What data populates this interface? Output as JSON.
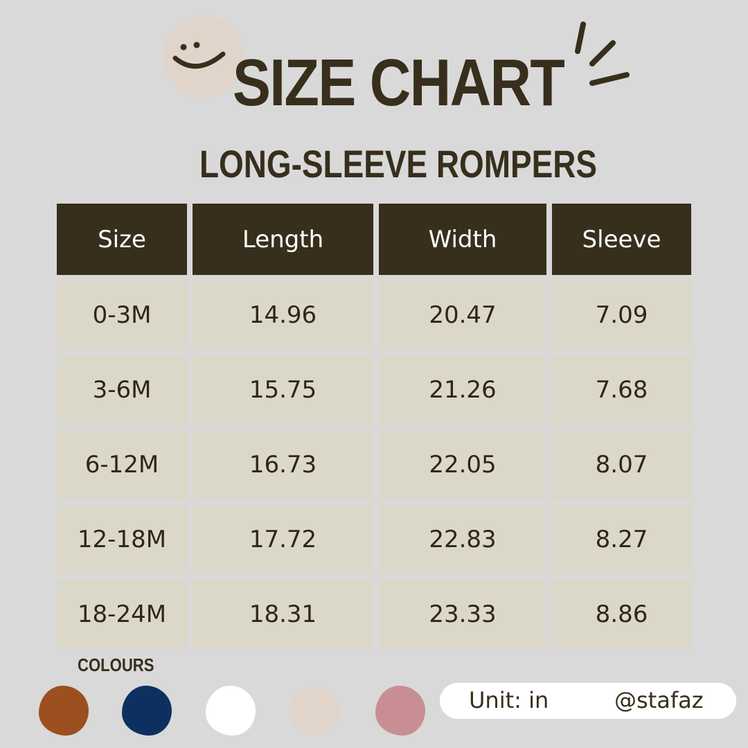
{
  "title": "SIZE CHART",
  "subtitle": "LONG-SLEEVE ROMPERS",
  "table": {
    "headers": [
      "Size",
      "Length",
      "Width",
      "Sleeve"
    ],
    "rows": [
      [
        "0-3M",
        "14.96",
        "20.47",
        "7.09"
      ],
      [
        "3-6M",
        "15.75",
        "21.26",
        "7.68"
      ],
      [
        "6-12M",
        "16.73",
        "22.05",
        "8.07"
      ],
      [
        "12-18M",
        "17.72",
        "22.83",
        "8.27"
      ],
      [
        "18-24M",
        "18.31",
        "23.33",
        "8.86"
      ]
    ]
  },
  "colours": {
    "label": "COLOURS",
    "swatches": [
      "#9c4f1f",
      "#0e3060",
      "#ffffff",
      "#e1d4ca",
      "#c98e94"
    ]
  },
  "footer": {
    "unit": "Unit: in",
    "handle": "@stafaz"
  },
  "colors": {
    "dark": "#372e1c",
    "cell": "#dbd8ca",
    "background": "#d9d9d9"
  }
}
